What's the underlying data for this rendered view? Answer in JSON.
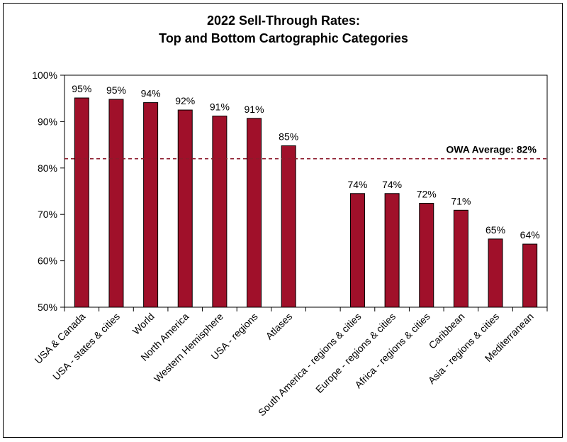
{
  "chart_data": {
    "type": "bar",
    "title": [
      "2022 Sell-Through Rates:",
      "Top and Bottom Cartographic Categories"
    ],
    "xlabel": "",
    "ylabel": "",
    "ylim": [
      0.5,
      1.0
    ],
    "yticks": [
      "50%",
      "60%",
      "70%",
      "80%",
      "90%",
      "100%"
    ],
    "categories": [
      "USA & Canada",
      "USA - states & cities",
      "World",
      "North America",
      "Western Hemisphere",
      "USA - regions",
      "Atlases",
      "",
      "South America - regions & cities",
      "Europe - regions & cities",
      "Africa - regions & cities",
      "Caribbean",
      "Asia - regions & cities",
      "Mediterranean"
    ],
    "series": [
      {
        "values": [
          0.951,
          0.948,
          0.941,
          0.925,
          0.912,
          0.907,
          0.848,
          null,
          0.745,
          0.745,
          0.724,
          0.709,
          0.647,
          0.636
        ],
        "labels": [
          "95%",
          "95%",
          "94%",
          "92%",
          "91%",
          "91%",
          "85%",
          "",
          "74%",
          "74%",
          "72%",
          "71%",
          "65%",
          "64%"
        ],
        "color": "#a0102a"
      }
    ],
    "reference_line": {
      "label": "OWA Average:  82%",
      "value": 0.82,
      "color": "#8b1a2b",
      "style": "dashed"
    },
    "grid": false,
    "legend": "none"
  }
}
